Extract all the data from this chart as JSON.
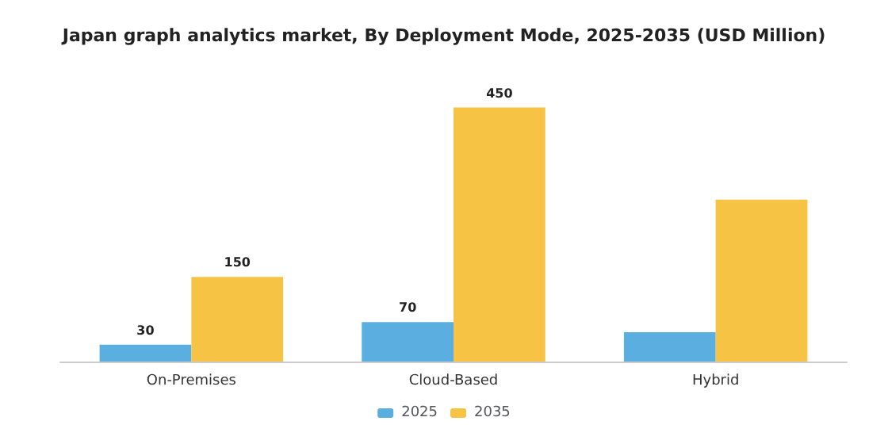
{
  "chart_data": {
    "type": "bar",
    "title": "Japan graph analytics market, By Deployment Mode, 2025-2035 (USD Million)",
    "categories": [
      "On-Premises",
      "Cloud-Based",
      "Hybrid"
    ],
    "series": [
      {
        "name": "2025",
        "color": "#5aafe0",
        "values": [
          30,
          70,
          52
        ],
        "value_labels": [
          "30",
          "70",
          null
        ]
      },
      {
        "name": "2035",
        "color": "#f7c344",
        "values": [
          150,
          450,
          287
        ],
        "value_labels": [
          "150",
          "450",
          null
        ]
      }
    ],
    "legend": "bottom"
  }
}
